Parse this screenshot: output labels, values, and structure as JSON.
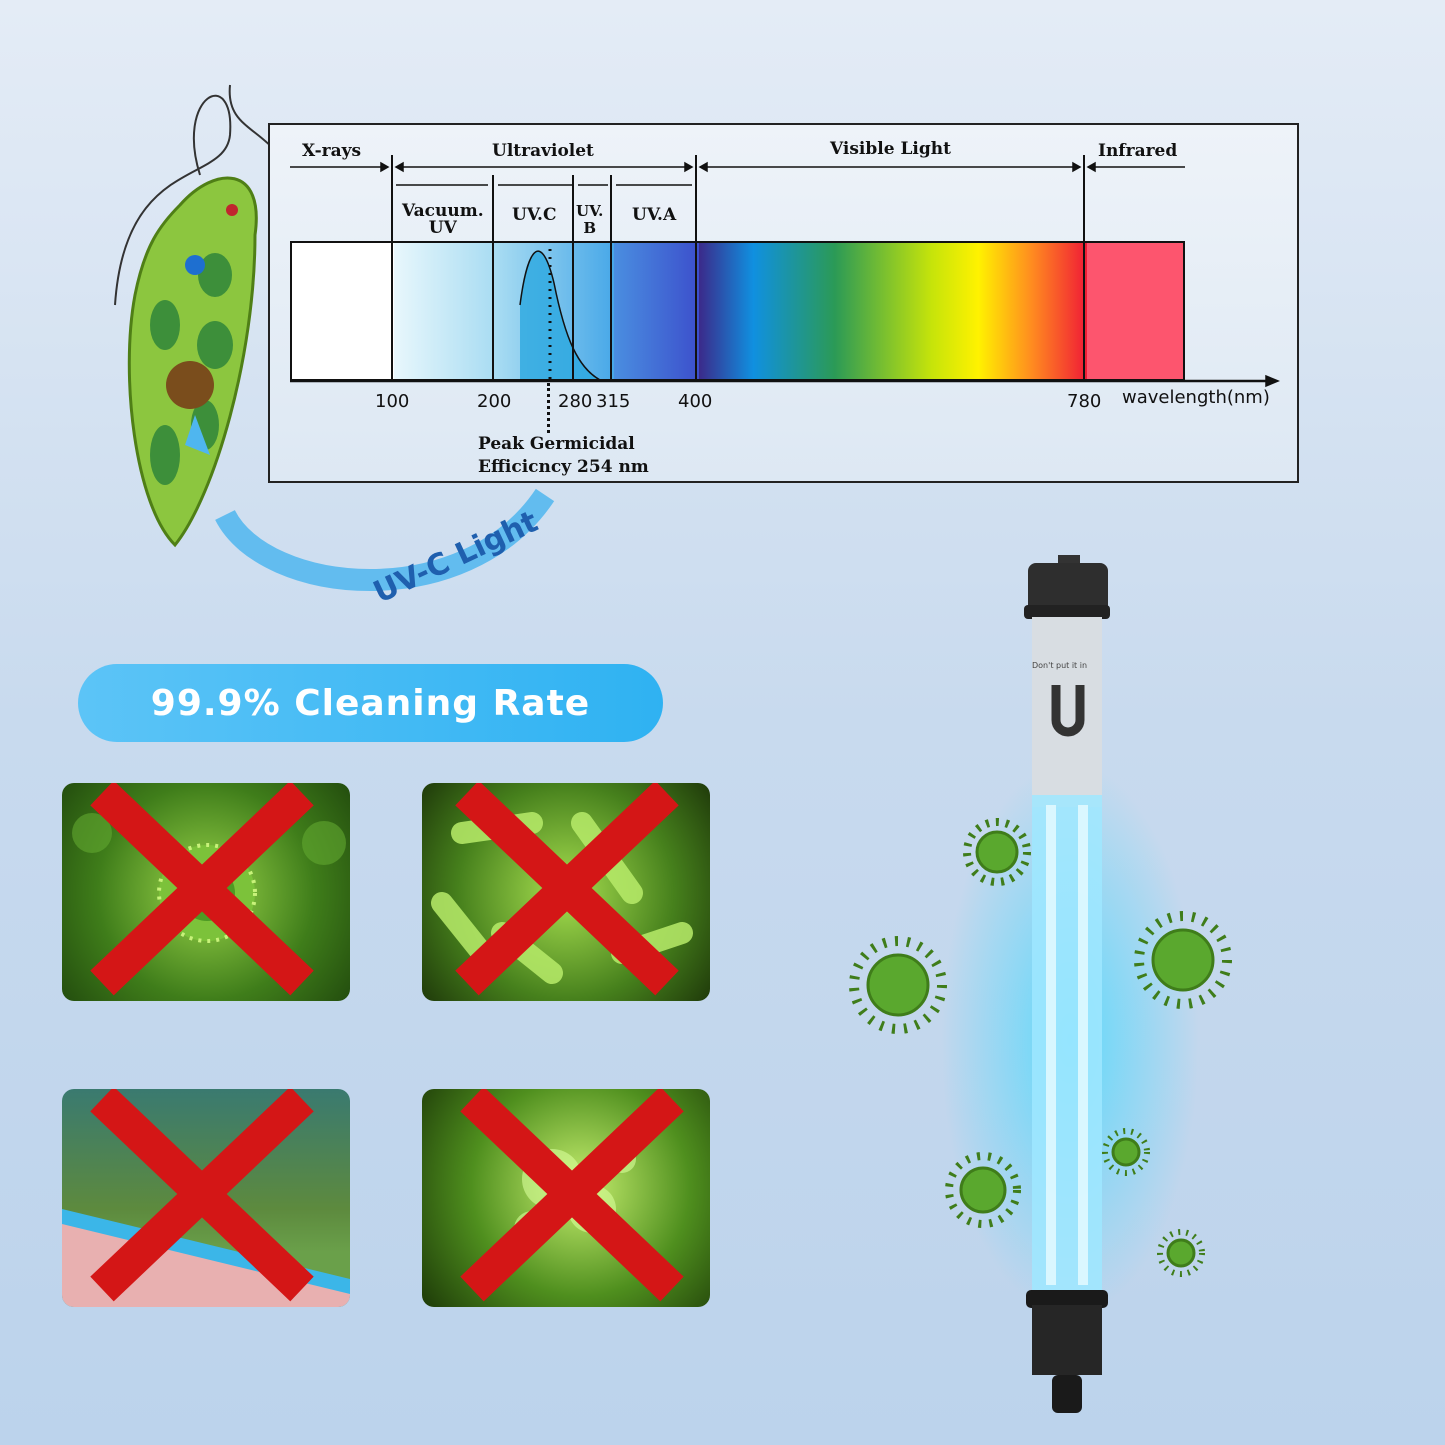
{
  "spectrum": {
    "regions": {
      "xrays": "X-rays",
      "ultraviolet": "Ultraviolet",
      "visible": "Visible Light",
      "infrared": "Infrared"
    },
    "sub_regions": {
      "vacuum_uv_1": "Vacuum.",
      "vacuum_uv_2": "UV",
      "uvc": "UV.C",
      "uvb_1": "UV.",
      "uvb_2": "B",
      "uva": "UV.A"
    },
    "ticks": [
      "100",
      "200",
      "280",
      "315",
      "400",
      "780"
    ],
    "axis_label": "wavelength(nm)",
    "peak_1": "Peak Germicidal",
    "peak_2": "Efficicncy 254 nm"
  },
  "illustration": {
    "arc_label": "UV-C Light"
  },
  "badge": {
    "text": "99.9% Cleaning Rate",
    "color": "#3ab6f3"
  },
  "tiles": [
    {
      "subject": "virus"
    },
    {
      "subject": "bacteria"
    },
    {
      "subject": "algae-water"
    },
    {
      "subject": "microbe-cells"
    }
  ],
  "lamp": {
    "label": "Don't put it in",
    "logo": "U",
    "glow_color": "#3fd8ff"
  },
  "colors": {
    "cross": "#d41616",
    "germ": "#5aa82e"
  }
}
